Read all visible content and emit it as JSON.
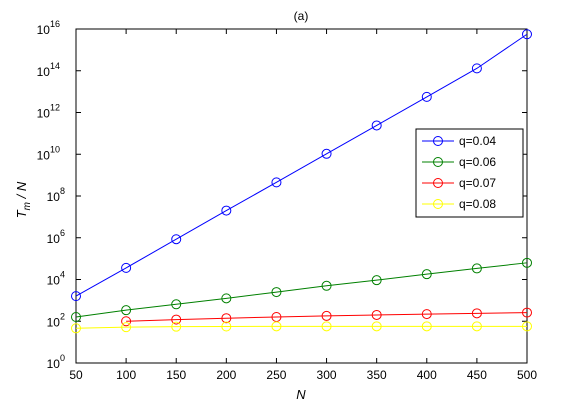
{
  "chart_data": {
    "type": "line",
    "title": "(a)",
    "xlabel": "N",
    "ylabel_main": "T",
    "ylabel_sub": "m",
    "ylabel_rest": " / N",
    "x": [
      50,
      100,
      150,
      200,
      250,
      300,
      350,
      400,
      450,
      500
    ],
    "xlim": [
      50,
      500
    ],
    "ylim": [
      1,
      1e+16
    ],
    "yscale": "log",
    "xticks": [
      "50",
      "100",
      "150",
      "200",
      "250",
      "300",
      "350",
      "400",
      "450",
      "500"
    ],
    "yticks": [
      {
        "base": "10",
        "exp": "0"
      },
      {
        "base": "10",
        "exp": "2"
      },
      {
        "base": "10",
        "exp": "4"
      },
      {
        "base": "10",
        "exp": "6"
      },
      {
        "base": "10",
        "exp": "8"
      },
      {
        "base": "10",
        "exp": "10"
      },
      {
        "base": "10",
        "exp": "12"
      },
      {
        "base": "10",
        "exp": "14"
      },
      {
        "base": "10",
        "exp": "16"
      }
    ],
    "grid": false,
    "legend_position": "right",
    "series": [
      {
        "name": "q=0.04",
        "color": "#0000ff",
        "x": [
          50,
          100,
          150,
          200,
          250,
          300,
          350,
          400,
          450,
          500
        ],
        "values": [
          1600.0,
          36000.0,
          850000.0,
          20000000.0,
          450000000.0,
          10500000000.0,
          240000000000.0,
          5600000000000.0,
          130000000000000.0,
          5600000000000000.0
        ]
      },
      {
        "name": "q=0.06",
        "color": "#008000",
        "x": [
          50,
          100,
          150,
          200,
          250,
          300,
          350,
          400,
          450,
          500
        ],
        "values": [
          160,
          340,
          650,
          1250,
          2500,
          5000,
          9300,
          18000,
          34000,
          63000
        ]
      },
      {
        "name": "q=0.07",
        "color": "#ff0000",
        "x": [
          100,
          150,
          200,
          250,
          300,
          350,
          400,
          450,
          500
        ],
        "values": [
          100,
          120,
          140,
          160,
          180,
          200,
          220,
          240,
          260
        ]
      },
      {
        "name": "q=0.08",
        "color": "#ffff00",
        "x": [
          50,
          100,
          150,
          200,
          250,
          300,
          350,
          400,
          450,
          500
        ],
        "values": [
          46,
          52,
          55,
          56,
          57,
          57,
          57,
          57,
          57,
          57
        ]
      }
    ]
  }
}
